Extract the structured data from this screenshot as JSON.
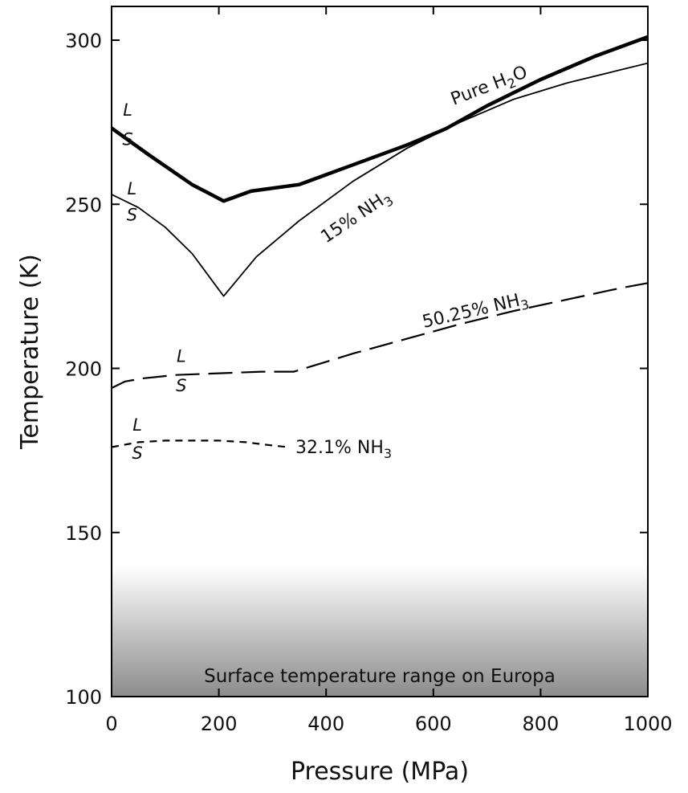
{
  "chart_data": {
    "type": "line",
    "xlabel": "Pressure (MPa)",
    "ylabel": "Temperature (K)",
    "xlim": [
      0,
      1000
    ],
    "ylim": [
      100,
      310
    ],
    "x_ticks": [
      0,
      200,
      400,
      600,
      800,
      1000
    ],
    "y_ticks": [
      100,
      150,
      200,
      250,
      300
    ],
    "grid": false,
    "band": {
      "label": "Surface temperature range on Europa",
      "range": [
        100,
        140
      ],
      "color_top": "#ffffff",
      "color_bottom": "#8c8c8c"
    },
    "series": [
      {
        "name": "Pure H2O",
        "label_main": "Pure H",
        "label_sub": "2",
        "label_tail": "O",
        "style": "solid-thick",
        "color": "#000000",
        "points": [
          [
            0,
            273.2
          ],
          [
            70,
            265
          ],
          [
            150,
            256
          ],
          [
            209,
            251
          ],
          [
            260,
            254
          ],
          [
            350,
            256
          ],
          [
            450,
            262
          ],
          [
            550,
            268
          ],
          [
            623,
            273
          ],
          [
            700,
            280
          ],
          [
            800,
            288
          ],
          [
            900,
            295
          ],
          [
            1000,
            301
          ]
        ]
      },
      {
        "name": "15% NH3",
        "label_main": "15% NH",
        "label_sub": "3",
        "style": "solid-thin",
        "color": "#000000",
        "points": [
          [
            0,
            253
          ],
          [
            50,
            249
          ],
          [
            100,
            243
          ],
          [
            150,
            235
          ],
          [
            209,
            222
          ],
          [
            270,
            234
          ],
          [
            350,
            245
          ],
          [
            450,
            257
          ],
          [
            550,
            267
          ],
          [
            650,
            275
          ],
          [
            750,
            282
          ],
          [
            850,
            287
          ],
          [
            950,
            291
          ],
          [
            1000,
            293
          ]
        ]
      },
      {
        "name": "50.25% NH3",
        "label_main": "50.25% NH",
        "label_sub": "3",
        "style": "long-dash",
        "color": "#000000",
        "points": [
          [
            0,
            194
          ],
          [
            25,
            196
          ],
          [
            60,
            197
          ],
          [
            120,
            198
          ],
          [
            200,
            198.5
          ],
          [
            280,
            199
          ],
          [
            340,
            199
          ],
          [
            380,
            201
          ],
          [
            450,
            204.5
          ],
          [
            550,
            209
          ],
          [
            650,
            213.5
          ],
          [
            750,
            217.5
          ],
          [
            850,
            221
          ],
          [
            950,
            224.5
          ],
          [
            1000,
            226
          ]
        ]
      },
      {
        "name": "32.1% NH3",
        "label_main": "32.1% NH",
        "label_sub": "3",
        "style": "short-dash",
        "color": "#000000",
        "points": [
          [
            0,
            176
          ],
          [
            50,
            177.5
          ],
          [
            100,
            178
          ],
          [
            150,
            178
          ],
          [
            200,
            178
          ],
          [
            250,
            177.5
          ],
          [
            300,
            176.5
          ],
          [
            330,
            176
          ]
        ]
      }
    ],
    "phase_labels": [
      {
        "upper": "L",
        "lower": "S",
        "curve": "Pure H2O",
        "x": 30,
        "y_upper": 277,
        "y_lower": 268
      },
      {
        "upper": "L",
        "lower": "S",
        "curve": "15% NH3",
        "x": 38,
        "y_upper": 253,
        "y_lower": 245
      },
      {
        "upper": "L",
        "lower": "S",
        "curve": "50.25% NH3",
        "x": 130,
        "y_upper": 202,
        "y_lower": 193
      },
      {
        "upper": "L",
        "lower": "S",
        "curve": "32.1% NH3",
        "x": 48,
        "y_upper": 181,
        "y_lower": 172.5
      }
    ]
  }
}
